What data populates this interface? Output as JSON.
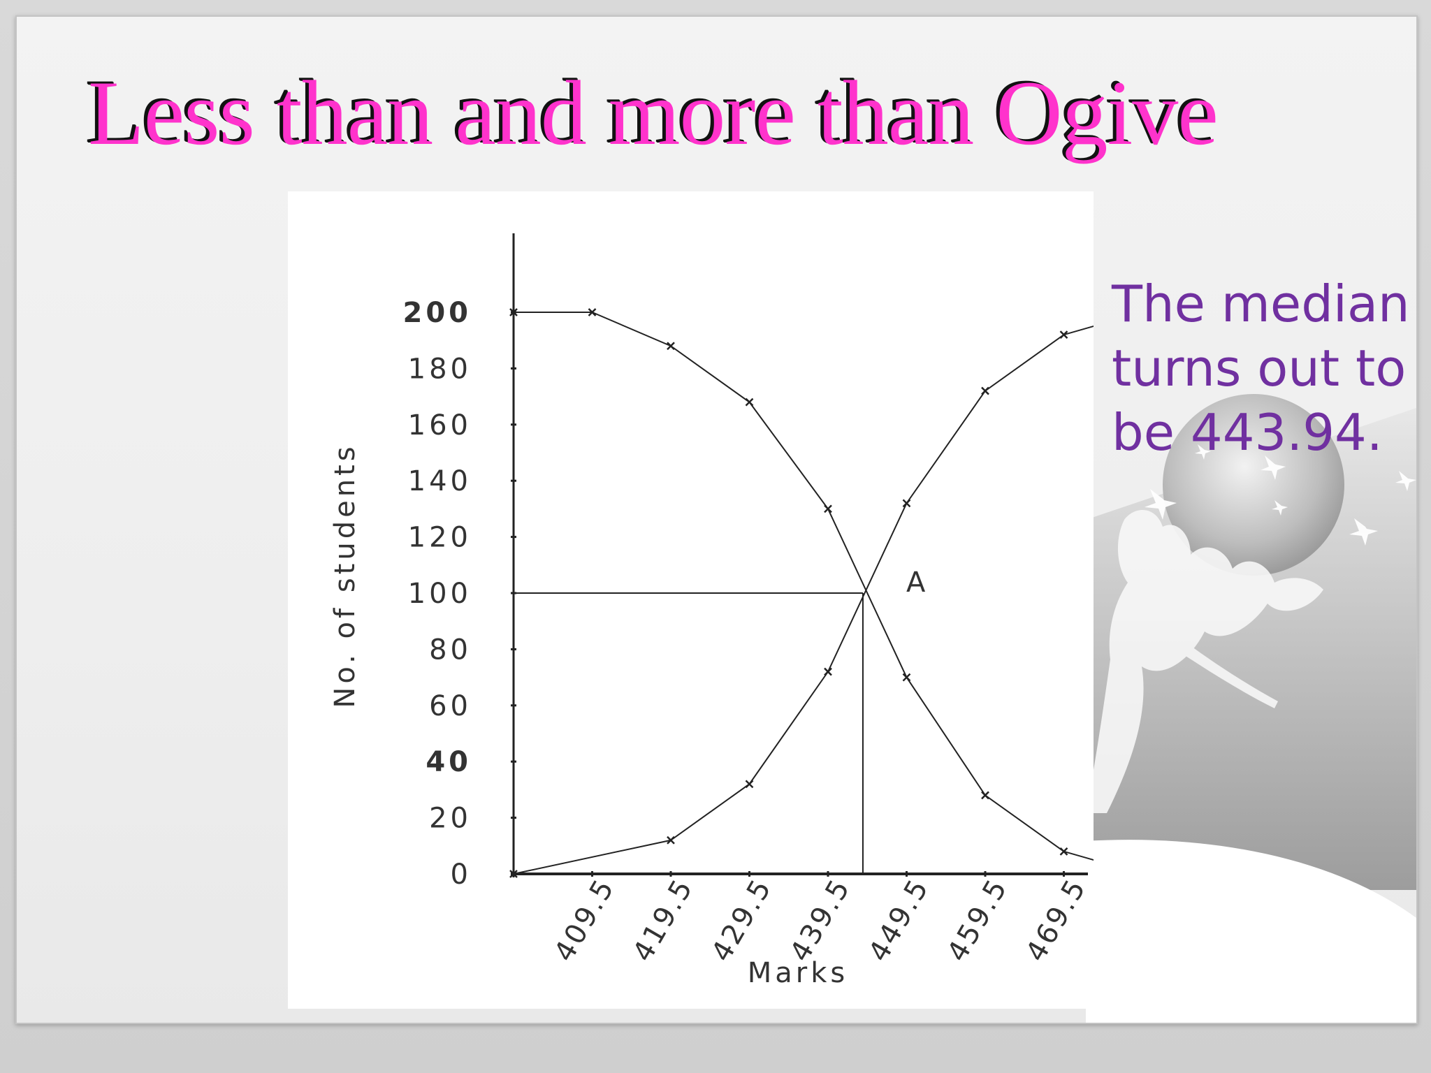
{
  "slide": {
    "title": "Less than and more than Ogive",
    "note": "The median turns out to be 443.94."
  },
  "colors": {
    "title": "#ff33cc",
    "title_shadow": "#111111",
    "note": "#7030a0",
    "line": "#222222"
  },
  "chart_data": {
    "type": "line",
    "xlabel": "Marks",
    "ylabel": "No. of students",
    "x_ticks": [
      "409.5",
      "419.5",
      "429.5",
      "439.5",
      "449.5",
      "459.5",
      "469.5"
    ],
    "y_ticks": [
      0,
      20,
      40,
      60,
      80,
      100,
      120,
      140,
      160,
      180,
      200
    ],
    "ylim": [
      0,
      200
    ],
    "series": [
      {
        "marker": "x",
        "x": [
          399.5,
          409.5,
          419.5,
          429.5,
          439.5,
          449.5,
          459.5,
          469.5,
          479.5
        ],
        "y": [
          200,
          200,
          188,
          168,
          130,
          70,
          28,
          8,
          0
        ]
      },
      {
        "marker": "x",
        "x": [
          399.5,
          419.5,
          429.5,
          439.5,
          449.5,
          459.5,
          469.5,
          479.5
        ],
        "y": [
          0,
          12,
          32,
          72,
          132,
          172,
          192,
          200
        ]
      }
    ],
    "median_line": {
      "x": 443.94,
      "y": 100
    },
    "annotation": "A",
    "grid": false
  }
}
